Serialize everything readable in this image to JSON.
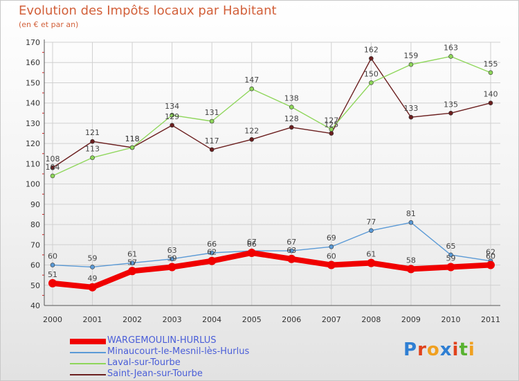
{
  "title": "Evolution des Impôts locaux par Habitant",
  "subtitle": "(en € et par an)",
  "logo": {
    "text": "Proxiti",
    "letters": [
      "P",
      "r",
      "o",
      "x",
      "i",
      "t",
      "i"
    ],
    "colors": [
      "#2f7fd3",
      "#e0421c",
      "#f0a020",
      "#2f7fd3",
      "#e0421c",
      "#58b230",
      "#f0a020"
    ]
  },
  "chart_data": {
    "type": "line",
    "title": "Evolution des Impôts locaux par Habitant",
    "subtitle": "(en € et par an)",
    "x": [
      "2000",
      "2001",
      "2002",
      "2003",
      "2004",
      "2005",
      "2006",
      "2007",
      "2008",
      "2009",
      "2010",
      "2011"
    ],
    "yticks": [
      "40",
      "50",
      "60",
      "70",
      "80",
      "90",
      "100",
      "110",
      "120",
      "130",
      "140",
      "150",
      "160",
      "170"
    ],
    "ylim": [
      40,
      170
    ],
    "grid": true,
    "legend": "bottom-left",
    "series": [
      {
        "name": "Saint-Jean-sur-Tourbe",
        "color": "#6b1f1f",
        "width": 1.4,
        "values": [
          108,
          121,
          118,
          129,
          117,
          122,
          128,
          125,
          162,
          133,
          135,
          140
        ],
        "labels": [
          "108",
          "121",
          "118",
          "129",
          "117",
          "122",
          "128",
          "125",
          "162",
          "133",
          "135",
          "140"
        ]
      },
      {
        "name": "Laval-sur-Tourbe",
        "color": "#8ed65a",
        "width": 1.4,
        "values": [
          104,
          113,
          118,
          134,
          131,
          147,
          138,
          127,
          150,
          159,
          163,
          155
        ],
        "labels": [
          "104",
          "113",
          "118",
          "134",
          "131",
          "147",
          "138",
          "127",
          "150",
          "159",
          "163",
          "155"
        ]
      },
      {
        "name": "Minaucourt-le-Mesnil-lès-Hurlus",
        "color": "#5b9ad6",
        "width": 1.4,
        "values": [
          60,
          59,
          61,
          63,
          66,
          67,
          67,
          69,
          77,
          81,
          65,
          62
        ],
        "labels": [
          "60",
          "59",
          "61",
          "63",
          "66",
          "67",
          "67",
          "69",
          "77",
          "81",
          "65",
          "62"
        ]
      },
      {
        "name": "WARGEMOULIN-HURLUS",
        "color": "#f00000",
        "width": 8,
        "values": [
          51,
          49,
          57,
          59,
          62,
          66,
          63,
          60,
          61,
          58,
          59,
          60
        ],
        "labels": [
          "51",
          "49",
          "57",
          "59",
          "62",
          "66",
          "63",
          "60",
          "61",
          "58",
          "59",
          "60"
        ]
      }
    ],
    "legend_entries": [
      "WARGEMOULIN-HURLUS",
      "Minaucourt-le-Mesnil-lès-Hurlus",
      "Laval-sur-Tourbe",
      "Saint-Jean-sur-Tourbe"
    ]
  }
}
